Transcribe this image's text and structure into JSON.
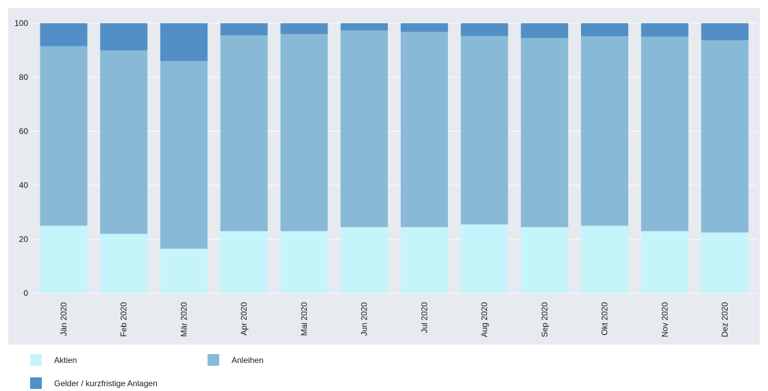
{
  "chart_data": {
    "type": "bar",
    "stacked": true,
    "categories": [
      "Jän 2020",
      "Feb 2020",
      "Mär 2020",
      "Apr 2020",
      "Mai 2020",
      "Jun 2020",
      "Jul 2020",
      "Aug 2020",
      "Sep 2020",
      "Okt 2020",
      "Nov 2020",
      "Dez 2020"
    ],
    "series": [
      {
        "name": "Aktien",
        "color": "#c6f4fb",
        "values": [
          25.0,
          22.0,
          16.5,
          23.0,
          23.0,
          24.5,
          24.5,
          25.5,
          24.5,
          25.0,
          23.0,
          22.5
        ]
      },
      {
        "name": "Anleihen",
        "color": "#88bad8",
        "values": [
          66.5,
          68.0,
          69.5,
          72.5,
          73.0,
          72.8,
          72.3,
          69.8,
          70.0,
          70.2,
          72.0,
          71.2
        ]
      },
      {
        "name": "Gelder / kurzfristige Anlagen",
        "color": "#528fc6",
        "values": [
          8.5,
          10.0,
          14.0,
          4.5,
          4.0,
          2.7,
          3.2,
          4.7,
          5.5,
          4.8,
          5.0,
          6.3
        ]
      }
    ],
    "ylim": [
      0,
      100
    ],
    "yticks": [
      0,
      20,
      40,
      60,
      80,
      100
    ],
    "grid": true,
    "legend_position": "bottom-left"
  }
}
